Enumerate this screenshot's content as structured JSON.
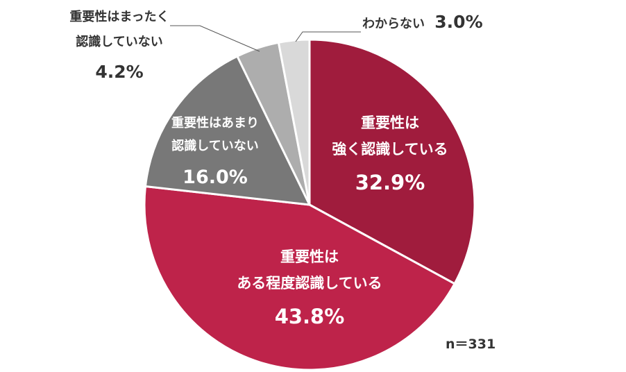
{
  "chart_data": {
    "type": "pie",
    "note": "n＝331",
    "slices": [
      {
        "lines": [
          "重要性は",
          "強く認識している"
        ],
        "pct_label": "32.9%",
        "value": 32.9,
        "color": "#A01C3D"
      },
      {
        "lines": [
          "重要性は",
          "ある程度認識している"
        ],
        "pct_label": "43.8%",
        "value": 43.8,
        "color": "#BE234A"
      },
      {
        "lines": [
          "重要性はあまり",
          "認識していない"
        ],
        "pct_label": "16.0%",
        "value": 16.0,
        "color": "#787878"
      },
      {
        "lines": [
          "重要性はまったく",
          "認識していない"
        ],
        "pct_label": "4.2%",
        "value": 4.2,
        "color": "#ADADAD"
      },
      {
        "lines": [
          "わからない"
        ],
        "pct_label": "3.0%",
        "value": 3.0,
        "color": "#D9D9D9"
      }
    ]
  }
}
